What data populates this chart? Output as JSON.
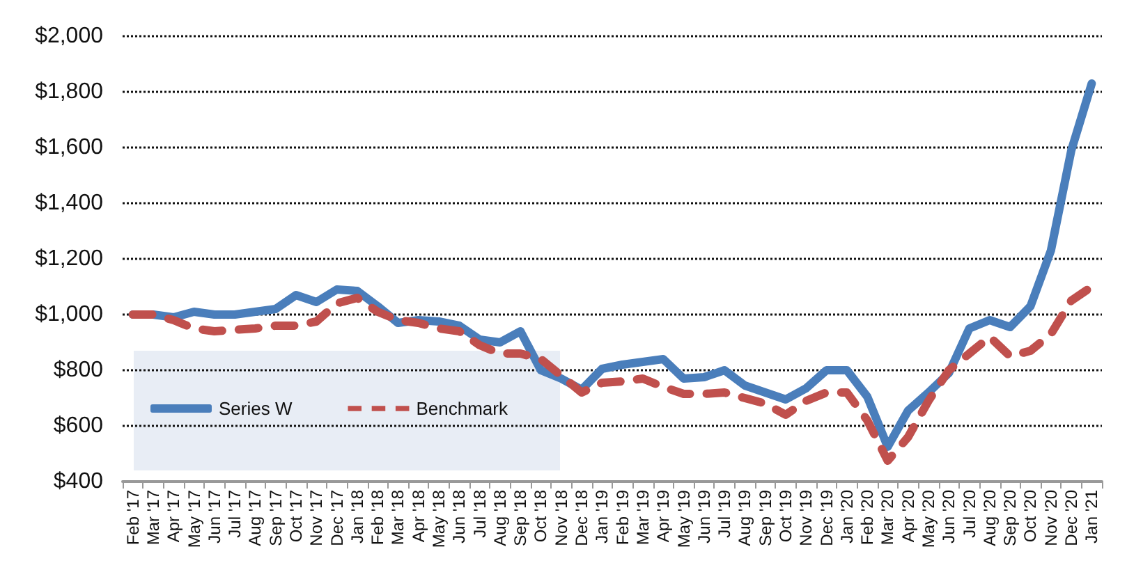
{
  "chart_data": {
    "type": "line",
    "categories": [
      "Feb '17",
      "Mar '17",
      "Apr '17",
      "May '17",
      "Jun '17",
      "Jul '17",
      "Aug '17",
      "Sep '17",
      "Oct '17",
      "Nov '17",
      "Dec '17",
      "Jan '18",
      "Feb '18",
      "Mar '18",
      "Apr '18",
      "May '18",
      "Jun '18",
      "Jul '18",
      "Aug '18",
      "Sep '18",
      "Oct '18",
      "Nov '18",
      "Dec '18",
      "Jan '19",
      "Feb '19",
      "Mar '19",
      "Apr '19",
      "May '19",
      "Jun '19",
      "Jul '19",
      "Aug '19",
      "Sep '19",
      "Oct '19",
      "Nov '19",
      "Dec '19",
      "Jan '20",
      "Feb '20",
      "Mar '20",
      "Apr '20",
      "May '20",
      "Jun '20",
      "Jul '20",
      "Aug '20",
      "Sep '20",
      "Oct '20",
      "Nov '20",
      "Dec '20",
      "Jan '21"
    ],
    "series": [
      {
        "name": "Series W",
        "color": "#4a7ebb",
        "line_style": "solid",
        "values": [
          1000,
          1000,
          990,
          1010,
          1000,
          1000,
          1010,
          1020,
          1070,
          1045,
          1090,
          1085,
          1030,
          970,
          980,
          975,
          960,
          910,
          900,
          940,
          800,
          770,
          730,
          805,
          820,
          830,
          840,
          770,
          775,
          800,
          745,
          720,
          695,
          735,
          800,
          800,
          705,
          525,
          655,
          720,
          790,
          950,
          980,
          955,
          1030,
          1230,
          1590,
          1830
        ]
      },
      {
        "name": "Benchmark",
        "color": "#c0504d",
        "line_style": "dashed",
        "values": [
          1000,
          1000,
          980,
          950,
          940,
          945,
          950,
          960,
          960,
          975,
          1040,
          1060,
          1010,
          980,
          970,
          950,
          940,
          890,
          860,
          860,
          840,
          780,
          720,
          755,
          760,
          770,
          740,
          715,
          715,
          720,
          700,
          680,
          640,
          690,
          720,
          720,
          620,
          475,
          560,
          690,
          800,
          860,
          920,
          850,
          870,
          930,
          1050,
          1100
        ]
      }
    ],
    "ylim": [
      400,
      2000
    ],
    "yticks": [
      {
        "value": 400,
        "label": "$400"
      },
      {
        "value": 600,
        "label": "$600"
      },
      {
        "value": 800,
        "label": "$800"
      },
      {
        "value": 1000,
        "label": "$1,000"
      },
      {
        "value": 1200,
        "label": "$1,200"
      },
      {
        "value": 1400,
        "label": "$1,400"
      },
      {
        "value": 1600,
        "label": "$1,600"
      },
      {
        "value": 1800,
        "label": "$1,800"
      },
      {
        "value": 2000,
        "label": "$2,000"
      }
    ],
    "grid": "y",
    "legend": "bottom left",
    "marker": "none"
  }
}
